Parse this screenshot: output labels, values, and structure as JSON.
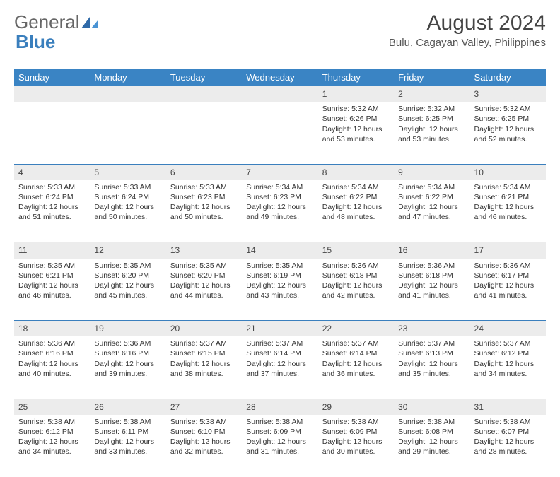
{
  "logo": {
    "part1": "General",
    "part2": "Blue"
  },
  "title": "August 2024",
  "location": "Bulu, Cagayan Valley, Philippines",
  "day_headers": [
    "Sunday",
    "Monday",
    "Tuesday",
    "Wednesday",
    "Thursday",
    "Friday",
    "Saturday"
  ],
  "colors": {
    "header_bg": "#3a84c4",
    "divider": "#3a7fbd",
    "daynum_bg": "#ececec"
  },
  "weeks": [
    [
      null,
      null,
      null,
      null,
      {
        "n": "1",
        "sr": "5:32 AM",
        "ss": "6:26 PM",
        "dl": "12 hours and 53 minutes."
      },
      {
        "n": "2",
        "sr": "5:32 AM",
        "ss": "6:25 PM",
        "dl": "12 hours and 53 minutes."
      },
      {
        "n": "3",
        "sr": "5:32 AM",
        "ss": "6:25 PM",
        "dl": "12 hours and 52 minutes."
      }
    ],
    [
      {
        "n": "4",
        "sr": "5:33 AM",
        "ss": "6:24 PM",
        "dl": "12 hours and 51 minutes."
      },
      {
        "n": "5",
        "sr": "5:33 AM",
        "ss": "6:24 PM",
        "dl": "12 hours and 50 minutes."
      },
      {
        "n": "6",
        "sr": "5:33 AM",
        "ss": "6:23 PM",
        "dl": "12 hours and 50 minutes."
      },
      {
        "n": "7",
        "sr": "5:34 AM",
        "ss": "6:23 PM",
        "dl": "12 hours and 49 minutes."
      },
      {
        "n": "8",
        "sr": "5:34 AM",
        "ss": "6:22 PM",
        "dl": "12 hours and 48 minutes."
      },
      {
        "n": "9",
        "sr": "5:34 AM",
        "ss": "6:22 PM",
        "dl": "12 hours and 47 minutes."
      },
      {
        "n": "10",
        "sr": "5:34 AM",
        "ss": "6:21 PM",
        "dl": "12 hours and 46 minutes."
      }
    ],
    [
      {
        "n": "11",
        "sr": "5:35 AM",
        "ss": "6:21 PM",
        "dl": "12 hours and 46 minutes."
      },
      {
        "n": "12",
        "sr": "5:35 AM",
        "ss": "6:20 PM",
        "dl": "12 hours and 45 minutes."
      },
      {
        "n": "13",
        "sr": "5:35 AM",
        "ss": "6:20 PM",
        "dl": "12 hours and 44 minutes."
      },
      {
        "n": "14",
        "sr": "5:35 AM",
        "ss": "6:19 PM",
        "dl": "12 hours and 43 minutes."
      },
      {
        "n": "15",
        "sr": "5:36 AM",
        "ss": "6:18 PM",
        "dl": "12 hours and 42 minutes."
      },
      {
        "n": "16",
        "sr": "5:36 AM",
        "ss": "6:18 PM",
        "dl": "12 hours and 41 minutes."
      },
      {
        "n": "17",
        "sr": "5:36 AM",
        "ss": "6:17 PM",
        "dl": "12 hours and 41 minutes."
      }
    ],
    [
      {
        "n": "18",
        "sr": "5:36 AM",
        "ss": "6:16 PM",
        "dl": "12 hours and 40 minutes."
      },
      {
        "n": "19",
        "sr": "5:36 AM",
        "ss": "6:16 PM",
        "dl": "12 hours and 39 minutes."
      },
      {
        "n": "20",
        "sr": "5:37 AM",
        "ss": "6:15 PM",
        "dl": "12 hours and 38 minutes."
      },
      {
        "n": "21",
        "sr": "5:37 AM",
        "ss": "6:14 PM",
        "dl": "12 hours and 37 minutes."
      },
      {
        "n": "22",
        "sr": "5:37 AM",
        "ss": "6:14 PM",
        "dl": "12 hours and 36 minutes."
      },
      {
        "n": "23",
        "sr": "5:37 AM",
        "ss": "6:13 PM",
        "dl": "12 hours and 35 minutes."
      },
      {
        "n": "24",
        "sr": "5:37 AM",
        "ss": "6:12 PM",
        "dl": "12 hours and 34 minutes."
      }
    ],
    [
      {
        "n": "25",
        "sr": "5:38 AM",
        "ss": "6:12 PM",
        "dl": "12 hours and 34 minutes."
      },
      {
        "n": "26",
        "sr": "5:38 AM",
        "ss": "6:11 PM",
        "dl": "12 hours and 33 minutes."
      },
      {
        "n": "27",
        "sr": "5:38 AM",
        "ss": "6:10 PM",
        "dl": "12 hours and 32 minutes."
      },
      {
        "n": "28",
        "sr": "5:38 AM",
        "ss": "6:09 PM",
        "dl": "12 hours and 31 minutes."
      },
      {
        "n": "29",
        "sr": "5:38 AM",
        "ss": "6:09 PM",
        "dl": "12 hours and 30 minutes."
      },
      {
        "n": "30",
        "sr": "5:38 AM",
        "ss": "6:08 PM",
        "dl": "12 hours and 29 minutes."
      },
      {
        "n": "31",
        "sr": "5:38 AM",
        "ss": "6:07 PM",
        "dl": "12 hours and 28 minutes."
      }
    ]
  ],
  "labels": {
    "sunrise": "Sunrise: ",
    "sunset": "Sunset: ",
    "daylight": "Daylight: "
  }
}
